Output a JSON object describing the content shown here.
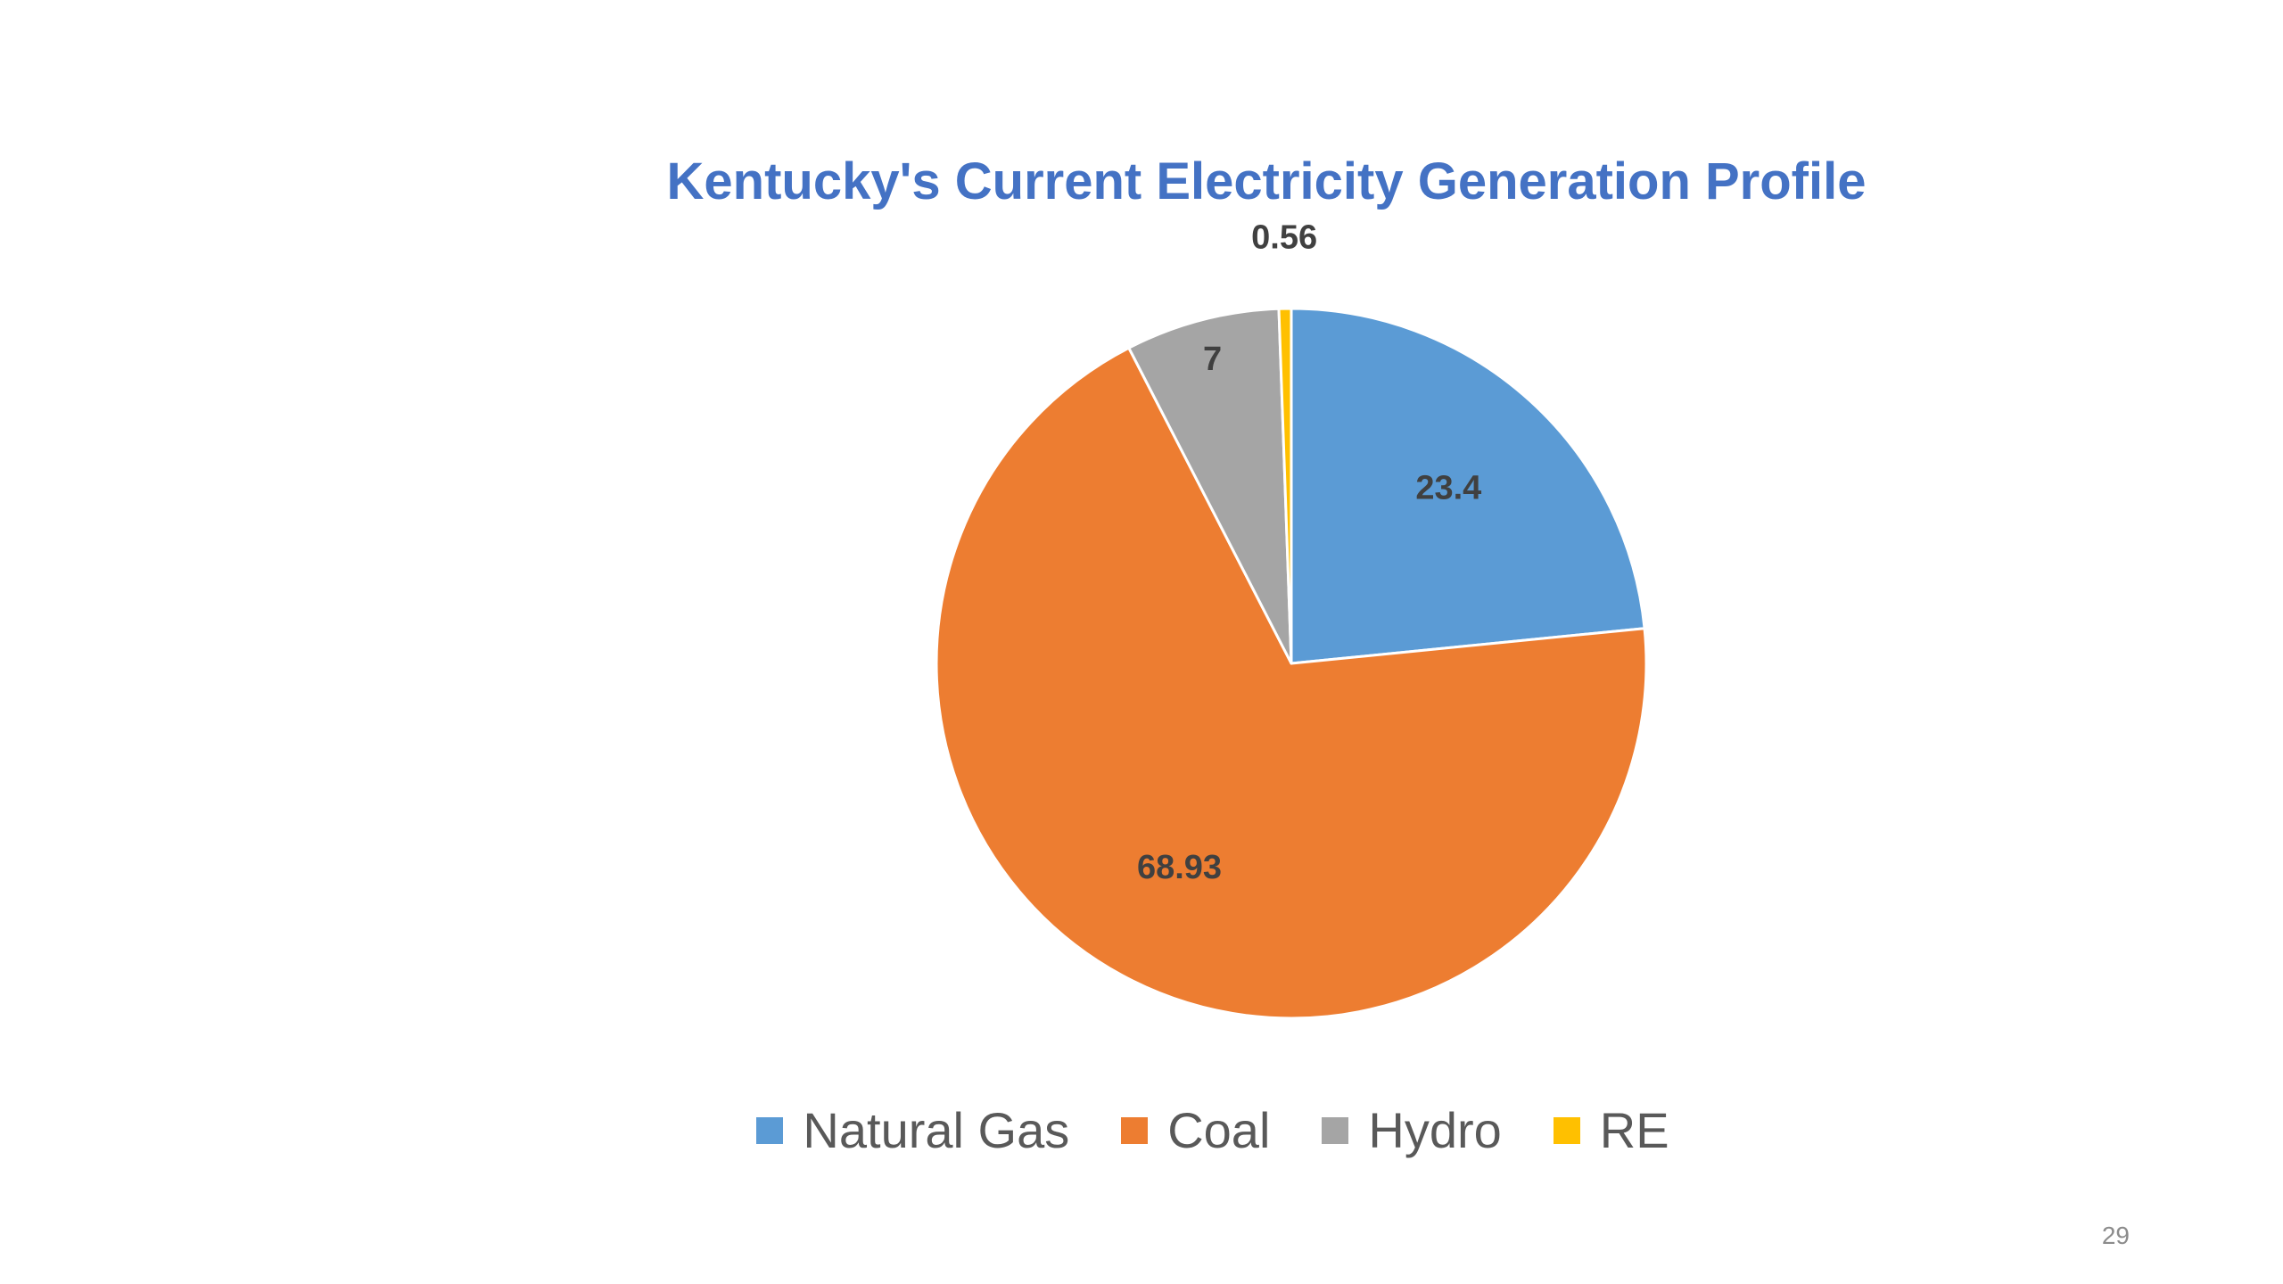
{
  "page": {
    "number": "29"
  },
  "chart_data": {
    "type": "pie",
    "title": "Kentucky's Current Electricity Generation Profile",
    "categories": [
      "Natural Gas",
      "Coal",
      "Hydro",
      "RE"
    ],
    "values": [
      23.4,
      68.93,
      7,
      0.56
    ],
    "data_labels": [
      "23.4",
      "68.93",
      "7",
      "0.56"
    ],
    "colors": [
      "#5b9bd5",
      "#ed7d31",
      "#a5a5a5",
      "#ffc000"
    ],
    "start_angle_deg": 0,
    "direction": "clockwise",
    "legend": "bottom"
  }
}
